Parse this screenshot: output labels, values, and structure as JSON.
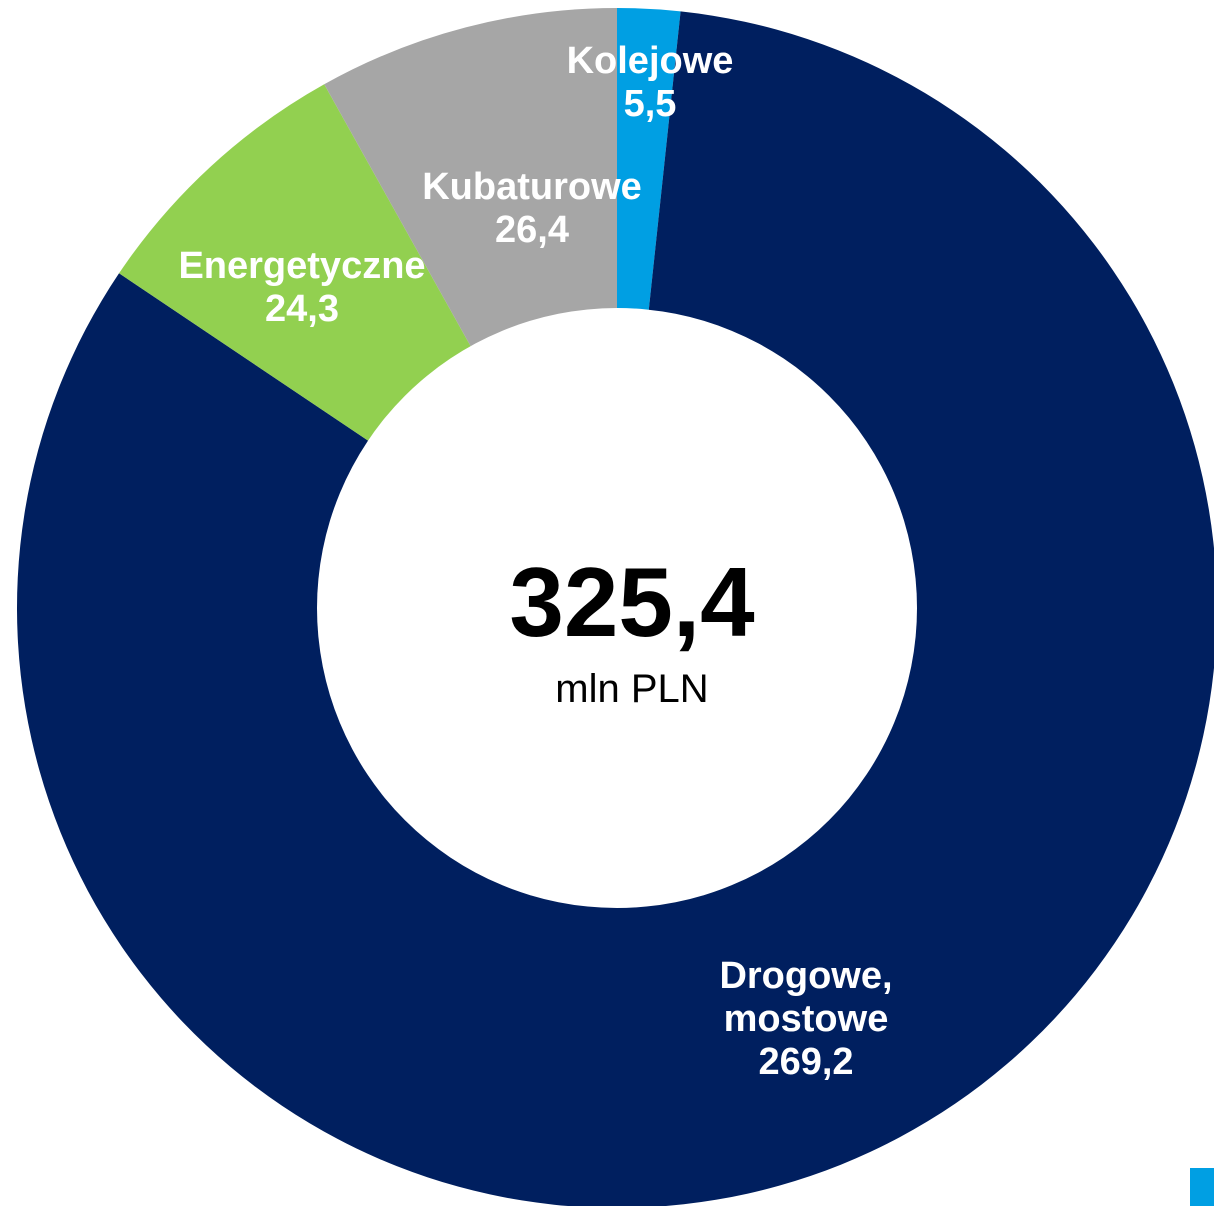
{
  "chart_data": {
    "type": "pie",
    "style": "donut",
    "center": {
      "value": "325,4",
      "unit": "mln PLN"
    },
    "slices": [
      {
        "key": "kolejowe",
        "label_lines": [
          "Kolejowe",
          "5,5"
        ],
        "value": 5.5,
        "color": "#009FE3"
      },
      {
        "key": "drogowe",
        "label_lines": [
          "Drogowe,",
          "mostowe",
          "269,2"
        ],
        "value": 269.2,
        "color": "#001F5F"
      },
      {
        "key": "energetyczne",
        "label_lines": [
          "Energetyczne",
          "24,3"
        ],
        "value": 24.3,
        "color": "#92D050"
      },
      {
        "key": "kubaturowe",
        "label_lines": [
          "Kubaturowe",
          "26,4"
        ],
        "value": 26.4,
        "color": "#A6A6A6"
      }
    ]
  },
  "corner_marker": {
    "color": "#009FE3"
  }
}
